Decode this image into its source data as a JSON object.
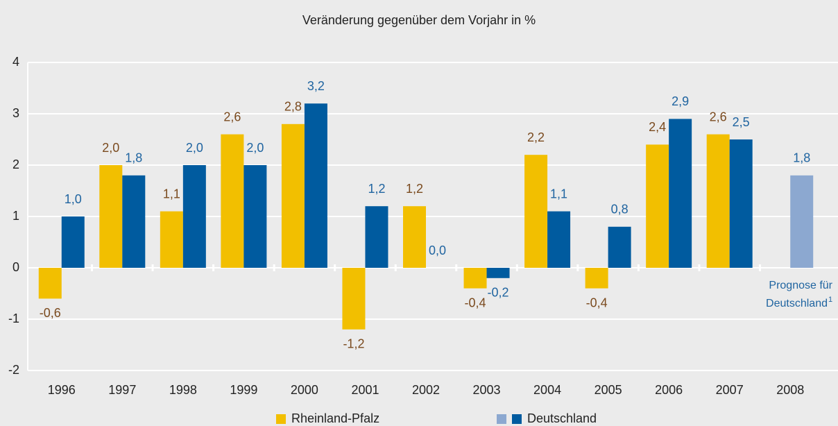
{
  "chart_data": {
    "type": "bar",
    "title": "Veränderung gegenüber dem Vorjahr in %",
    "categories": [
      "1996",
      "1997",
      "1998",
      "1999",
      "2000",
      "2001",
      "2002",
      "2003",
      "2004",
      "2005",
      "2006",
      "2007",
      "2008"
    ],
    "series": [
      {
        "name": "Rheinland-Pfalz",
        "color": "#f2bf00",
        "label_color": "#7a4a1e",
        "values": [
          -0.6,
          2.0,
          1.1,
          2.6,
          2.8,
          -1.2,
          1.2,
          -0.4,
          2.2,
          -0.4,
          2.4,
          2.6,
          null
        ],
        "value_labels": [
          "-0,6",
          "2,0",
          "1,1",
          "2,6",
          "2,8",
          "-1,2",
          "1,2",
          "-0,4",
          "2,2",
          "-0,4",
          "2,4",
          "2,6",
          null
        ]
      },
      {
        "name": "Deutschland",
        "color": "#005b9f",
        "label_color": "#1f64a0",
        "colors": [
          "#005b9f",
          "#005b9f",
          "#005b9f",
          "#005b9f",
          "#005b9f",
          "#005b9f",
          "#005b9f",
          "#005b9f",
          "#005b9f",
          "#005b9f",
          "#005b9f",
          "#005b9f",
          "#8ca8d0"
        ],
        "legend_colors": [
          "#8ca8d0",
          "#005b9f"
        ],
        "values": [
          1.0,
          1.8,
          2.0,
          2.0,
          3.2,
          1.2,
          0.0,
          -0.2,
          1.1,
          0.8,
          2.9,
          2.5,
          1.8
        ],
        "value_labels": [
          "1,0",
          "1,8",
          "2,0",
          "2,0",
          "3,2",
          "1,2",
          "0,0",
          "-0,2",
          "1,1",
          "0,8",
          "2,9",
          "2,5",
          "1,8"
        ]
      }
    ],
    "annotation": {
      "lines": [
        "Prognose für",
        "Deutschland"
      ],
      "footnote": "1"
    },
    "ylim": [
      -2,
      4
    ],
    "yticks": [
      -2,
      -1,
      0,
      1,
      2,
      3,
      4
    ],
    "grid": true
  }
}
